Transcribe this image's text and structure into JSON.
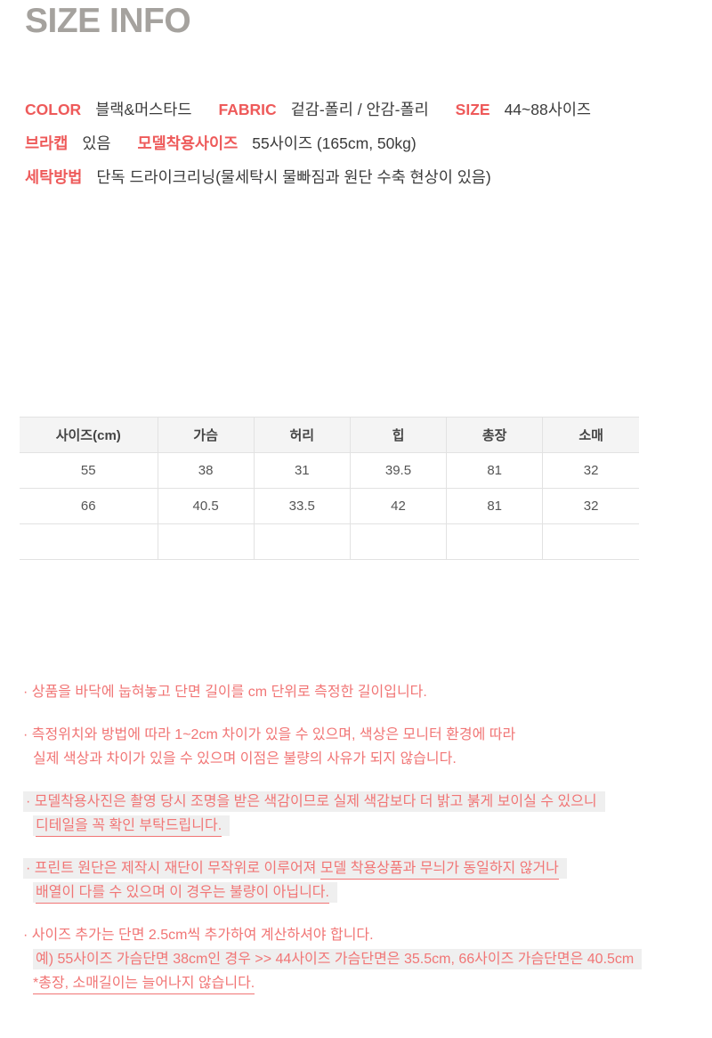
{
  "page": {
    "title": "SIZE INFO"
  },
  "colors": {
    "title_gray": "#a5a29e",
    "accent_red": "#ee5a5a",
    "note_text": "#f17575",
    "dark_text": "#3b3b3b",
    "highlight_bg": "#efefef",
    "table_border": "#e2e2e2",
    "table_header_bg": "#f4f4f4"
  },
  "product_info": {
    "rows": [
      {
        "pairs": [
          {
            "label": "COLOR",
            "value": "블랙&머스타드"
          },
          {
            "label": "FABRIC",
            "value": "겉감-폴리 / 안감-폴리"
          },
          {
            "label": "SIZE",
            "value": "44~88사이즈"
          }
        ]
      },
      {
        "pairs": [
          {
            "label": "브라캡",
            "value": "있음"
          },
          {
            "label": "모델착용사이즈",
            "value": "55사이즈 (165cm, 50kg)"
          }
        ]
      },
      {
        "pairs": [
          {
            "label": "세탁방법",
            "value": "단독 드라이크리닝(물세탁시 물빠짐과 원단 수축 현상이 있음)"
          }
        ]
      }
    ]
  },
  "size_table": {
    "headers": [
      "사이즈(cm)",
      "가슴",
      "허리",
      "힙",
      "총장",
      "소매"
    ],
    "rows": [
      [
        "55",
        "38",
        "31",
        "39.5",
        "81",
        "32"
      ],
      [
        "66",
        "40.5",
        "33.5",
        "42",
        "81",
        "32"
      ],
      [
        "",
        "",
        "",
        "",
        "",
        ""
      ]
    ]
  },
  "notes": [
    {
      "lines": [
        {
          "segments": [
            {
              "text": "· 상품을 바닥에 눕혀놓고 단면 길이를 cm 단위로 측정한 길이입니다."
            }
          ]
        }
      ]
    },
    {
      "lines": [
        {
          "segments": [
            {
              "text": "· 측정위치와 방법에 따라 1~2cm 차이가 있을 수 있으며, 색상은 모니터 환경에 따라"
            }
          ]
        },
        {
          "indent": true,
          "segments": [
            {
              "text": "실제 색상과 차이가 있을 수 있으며 이점은 불량의 사유가 되지 않습니다."
            }
          ]
        }
      ]
    },
    {
      "lines": [
        {
          "highlight": true,
          "segments": [
            {
              "text": "· 모델착용사진은 촬영 당시 조명을 받은 색감이므로 실제 색감보다 더 밝고 붉게 보이실 수 있으니"
            }
          ]
        },
        {
          "indent": true,
          "highlight": true,
          "segments": [
            {
              "text": "디테일을 꼭 확인 부탁드립니다.",
              "underline": true
            }
          ]
        }
      ]
    },
    {
      "lines": [
        {
          "highlight": true,
          "segments": [
            {
              "text": "· 프린트 원단은 제작시 재단이 무작위로 이루어져 "
            },
            {
              "text": "모델 착용상품과 무늬가 동일하지 않거나",
              "underline": true
            }
          ]
        },
        {
          "indent": true,
          "highlight": true,
          "segments": [
            {
              "text": "배열이 다를 수 있으며 이 경우는 불량이 아닙니다.",
              "underline": true
            }
          ]
        }
      ]
    },
    {
      "lines": [
        {
          "segments": [
            {
              "text": "· 사이즈 추가는 단면 2.5cm씩 추가하여 계산하셔야 합니다."
            }
          ]
        },
        {
          "indent": true,
          "highlight": true,
          "segments": [
            {
              "text": "예) 55사이즈 가슴단면 38cm인 경우 >> 44사이즈 가슴단면은 35.5cm, 66사이즈 가슴단면은 40.5cm"
            }
          ]
        },
        {
          "indent": true,
          "segments": [
            {
              "text": "*총장, 소매길이는 늘어나지 않습니다.",
              "underline": true
            }
          ]
        }
      ]
    }
  ]
}
